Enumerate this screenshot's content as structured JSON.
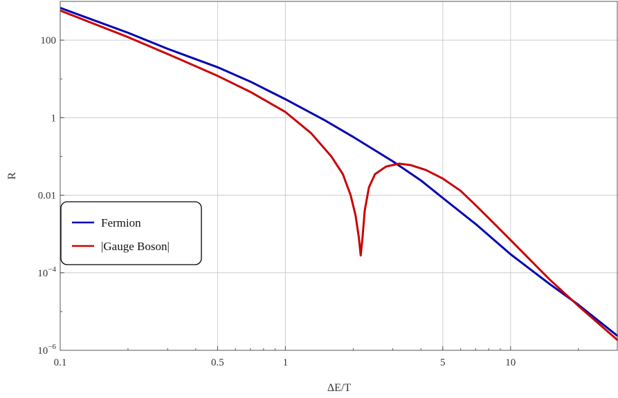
{
  "chart_data": {
    "type": "line",
    "xlabel": "ΔE/T",
    "ylabel": "R",
    "x_scale": "log",
    "y_scale": "log",
    "xlim": [
      0.1,
      30
    ],
    "ylim": [
      1e-06,
      1000
    ],
    "x_ticks": [
      {
        "value": 0.1,
        "label": "0.1"
      },
      {
        "value": 0.5,
        "label": "0.5"
      },
      {
        "value": 1,
        "label": "1"
      },
      {
        "value": 5,
        "label": "5"
      },
      {
        "value": 10,
        "label": "10"
      }
    ],
    "y_ticks": [
      {
        "value": 100,
        "label": "100",
        "base": "",
        "exp": ""
      },
      {
        "value": 1,
        "label": "1",
        "base": "",
        "exp": ""
      },
      {
        "value": 0.01,
        "label": "0.01",
        "base": "",
        "exp": ""
      },
      {
        "value": 0.0001,
        "label": "",
        "base": "10",
        "exp": "−4"
      },
      {
        "value": 1e-06,
        "label": "",
        "base": "10",
        "exp": "−6"
      }
    ],
    "grid": true,
    "legend_position": "lower-left",
    "series": [
      {
        "name": "Fermion",
        "color": "#0000b4",
        "points": [
          [
            0.1,
            680
          ],
          [
            0.2,
            155
          ],
          [
            0.3,
            60
          ],
          [
            0.5,
            20
          ],
          [
            0.7,
            8.5
          ],
          [
            1.0,
            3.0
          ],
          [
            1.5,
            0.85
          ],
          [
            2.0,
            0.32
          ],
          [
            3.0,
            0.075
          ],
          [
            4.0,
            0.024
          ],
          [
            5.0,
            0.0085
          ],
          [
            7.0,
            0.0018
          ],
          [
            10.0,
            0.0003
          ],
          [
            15.0,
            5e-05
          ],
          [
            20.0,
            1.5e-05
          ],
          [
            30.0,
            2.3e-06
          ]
        ]
      },
      {
        "name": "|Gauge Boson|",
        "color": "#cc0000",
        "points": [
          [
            0.1,
            580
          ],
          [
            0.2,
            120
          ],
          [
            0.3,
            44
          ],
          [
            0.5,
            12
          ],
          [
            0.7,
            4.6
          ],
          [
            1.0,
            1.4
          ],
          [
            1.3,
            0.4
          ],
          [
            1.6,
            0.1
          ],
          [
            1.8,
            0.035
          ],
          [
            1.95,
            0.01
          ],
          [
            2.05,
            0.003
          ],
          [
            2.12,
            0.0008
          ],
          [
            2.16,
            0.00028
          ],
          [
            2.2,
            0.0008
          ],
          [
            2.25,
            0.004
          ],
          [
            2.35,
            0.016
          ],
          [
            2.5,
            0.035
          ],
          [
            2.8,
            0.055
          ],
          [
            3.2,
            0.065
          ],
          [
            3.6,
            0.06
          ],
          [
            4.2,
            0.045
          ],
          [
            5.0,
            0.027
          ],
          [
            6.0,
            0.013
          ],
          [
            7.0,
            0.0055
          ],
          [
            8.5,
            0.0018
          ],
          [
            10.0,
            0.0007
          ],
          [
            13.0,
            0.00015
          ],
          [
            15.0,
            6.5e-05
          ],
          [
            20.0,
            1.4e-05
          ],
          [
            30.0,
            1.8e-06
          ]
        ]
      }
    ]
  }
}
